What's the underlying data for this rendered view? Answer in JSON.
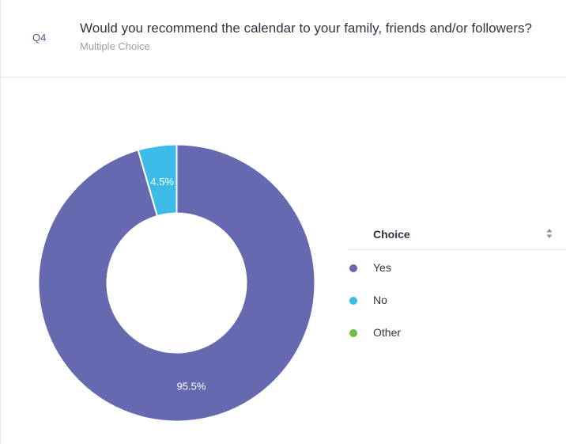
{
  "question": {
    "number": "Q4",
    "title": "Would you recommend the calendar to your family, friends and/or followers?",
    "type": "Multiple Choice"
  },
  "legend": {
    "header": "Choice",
    "sort_icon": "sort-icon"
  },
  "chart_data": {
    "type": "pie",
    "donut": true,
    "categories": [
      "Yes",
      "No",
      "Other"
    ],
    "values": [
      95.5,
      4.5,
      0
    ],
    "labels": [
      "95.5%",
      "4.5%",
      ""
    ],
    "colors": [
      "#6469b0",
      "#3dbbe8",
      "#6dbe3f"
    ]
  }
}
